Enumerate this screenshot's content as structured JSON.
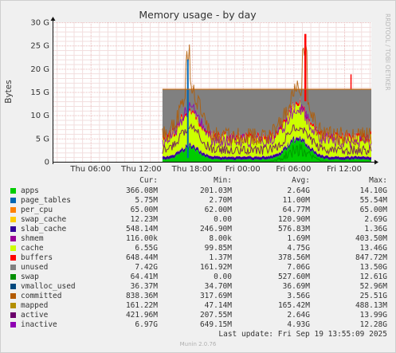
{
  "chart_data": {
    "type": "area",
    "title": "Memory usage - by day",
    "ylabel": "Bytes",
    "side_label": "RRDTOOL / TOBI OETIKER",
    "yticks": [
      "0",
      "5 G",
      "10 G",
      "15 G",
      "20 G",
      "25 G",
      "30 G"
    ],
    "ytick_values": [
      0,
      5,
      10,
      15,
      20,
      25,
      30
    ],
    "ylim": [
      0,
      30
    ],
    "y_unit": "G",
    "xticks": [
      "Thu 06:00",
      "Thu 12:00",
      "Thu 18:00",
      "Fri 00:00",
      "Fri 06:00",
      "Fri 12:00"
    ],
    "xtick_hours": [
      6,
      12,
      18,
      24,
      30,
      36
    ],
    "xlim_hours": [
      1.5,
      39.2
    ],
    "data_start_hour": 14.5,
    "grid": true,
    "legend_headers": [
      "Cur:",
      "Min:",
      "Avg:",
      "Max:"
    ],
    "series": [
      {
        "name": "apps",
        "color": "#00cc00",
        "cur": "366.08M",
        "min": "201.03M",
        "avg": "2.64G",
        "max": "14.10G"
      },
      {
        "name": "page_tables",
        "color": "#0066b3",
        "cur": "5.75M",
        "min": "2.70M",
        "avg": "11.00M",
        "max": "55.54M"
      },
      {
        "name": "per_cpu",
        "color": "#ff8000",
        "cur": "65.00M",
        "min": "62.00M",
        "avg": "64.77M",
        "max": "65.00M"
      },
      {
        "name": "swap_cache",
        "color": "#ffcc00",
        "cur": "12.23M",
        "min": "0.00",
        "avg": "120.90M",
        "max": "2.69G"
      },
      {
        "name": "slab_cache",
        "color": "#330099",
        "cur": "548.14M",
        "min": "246.90M",
        "avg": "576.83M",
        "max": "1.36G"
      },
      {
        "name": "shmem",
        "color": "#990099",
        "cur": "116.00k",
        "min": "8.00k",
        "avg": "1.69M",
        "max": "403.50M"
      },
      {
        "name": "cache",
        "color": "#ccff00",
        "cur": "6.55G",
        "min": "99.85M",
        "avg": "4.75G",
        "max": "13.46G"
      },
      {
        "name": "buffers",
        "color": "#ff0000",
        "cur": "648.44M",
        "min": "1.37M",
        "avg": "378.56M",
        "max": "847.72M"
      },
      {
        "name": "unused",
        "color": "#808080",
        "cur": "7.42G",
        "min": "161.92M",
        "avg": "7.06G",
        "max": "13.50G"
      },
      {
        "name": "swap",
        "color": "#008f00",
        "cur": "64.41M",
        "min": "0.00",
        "avg": "527.60M",
        "max": "12.61G"
      },
      {
        "name": "vmalloc_used",
        "color": "#00487d",
        "cur": "36.37M",
        "min": "34.70M",
        "avg": "36.69M",
        "max": "52.96M"
      },
      {
        "name": "committed",
        "color": "#b35a00",
        "cur": "838.36M",
        "min": "317.69M",
        "avg": "3.56G",
        "max": "25.51G"
      },
      {
        "name": "mapped",
        "color": "#b38f00",
        "cur": "161.22M",
        "min": "47.14M",
        "avg": "165.42M",
        "max": "488.13M"
      },
      {
        "name": "active",
        "color": "#6b006b",
        "cur": "421.96M",
        "min": "207.55M",
        "avg": "2.64G",
        "max": "13.99G"
      },
      {
        "name": "inactive",
        "color": "#8f00b3",
        "cur": "6.97G",
        "min": "649.15M",
        "avg": "4.93G",
        "max": "12.28G"
      }
    ]
  },
  "footer": {
    "last_update": "Last update: Fri Sep 19 13:55:09 2025",
    "version": "Munin 2.0.76"
  }
}
